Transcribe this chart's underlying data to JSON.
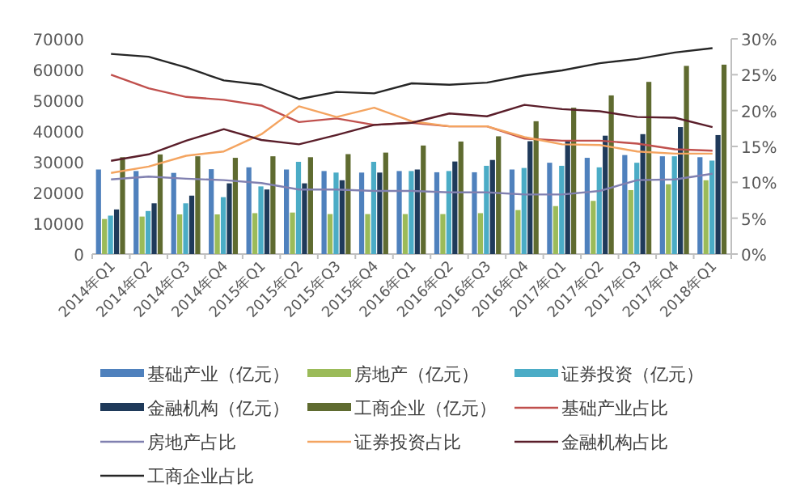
{
  "chart_data": {
    "type": "bar",
    "categories": [
      "2014年Q1",
      "2014年Q2",
      "2014年Q3",
      "2014年Q4",
      "2015年Q1",
      "2015年Q2",
      "2015年Q3",
      "2015年Q4",
      "2016年Q1",
      "2016年Q2",
      "2016年Q3",
      "2016年Q4",
      "2017年Q1",
      "2017年Q2",
      "2017年Q3",
      "2017年Q4",
      "2018年Q1"
    ],
    "series": [
      {
        "name": "基础产业（亿元）",
        "color": "#4f81bd",
        "values": [
          27500,
          27000,
          26400,
          27600,
          28200,
          27500,
          27000,
          26500,
          27000,
          26600,
          26600,
          27500,
          29700,
          31300,
          32200,
          31800,
          31500
        ]
      },
      {
        "name": "房地产（亿元）",
        "color": "#9bbb59",
        "values": [
          11400,
          12200,
          12900,
          12900,
          13300,
          13500,
          13000,
          13000,
          13000,
          13000,
          13300,
          14300,
          15600,
          17300,
          20800,
          22700,
          24000
        ]
      },
      {
        "name": "证券投资（亿元）",
        "color": "#4bacc6",
        "values": [
          12500,
          14000,
          16500,
          18500,
          22000,
          30000,
          26500,
          30000,
          27000,
          27000,
          28700,
          28000,
          28700,
          28200,
          29700,
          31800,
          30400
        ]
      },
      {
        "name": "金融机构（亿元）",
        "color": "#1f3a5a",
        "values": [
          14500,
          16500,
          19000,
          23000,
          21000,
          23000,
          24000,
          26500,
          27500,
          30100,
          30600,
          36700,
          36700,
          38500,
          39000,
          41300,
          38700
        ]
      },
      {
        "name": "工商企业（亿元）",
        "color": "#5f6b30",
        "values": [
          31500,
          32400,
          31800,
          31300,
          31800,
          31500,
          32500,
          33000,
          35300,
          36600,
          38300,
          43200,
          47600,
          51600,
          56000,
          61200,
          61600
        ]
      },
      {
        "name": "基础产业占比",
        "type": "line",
        "axis": "y2",
        "color": "#c0504d",
        "values": [
          25.0,
          23.1,
          21.9,
          21.5,
          20.7,
          18.4,
          18.9,
          18.0,
          18.3,
          17.8,
          17.8,
          16.1,
          15.8,
          15.8,
          15.4,
          14.6,
          14.4
        ]
      },
      {
        "name": "房地产占比",
        "type": "line",
        "axis": "y2",
        "color": "#8080b0",
        "values": [
          10.4,
          10.8,
          10.5,
          10.3,
          9.9,
          9.0,
          9.0,
          8.8,
          8.8,
          8.6,
          8.6,
          8.3,
          8.3,
          8.8,
          10.3,
          10.4,
          11.2
        ]
      },
      {
        "name": "证券投资占比",
        "type": "line",
        "axis": "y2",
        "color": "#f4a460",
        "values": [
          11.3,
          12.2,
          13.7,
          14.3,
          16.7,
          20.6,
          19.1,
          20.4,
          18.5,
          17.8,
          17.8,
          16.3,
          15.3,
          15.2,
          14.3,
          14.0,
          14.0
        ]
      },
      {
        "name": "金融机构占比",
        "type": "line",
        "axis": "y2",
        "color": "#5a1e2a",
        "values": [
          13.0,
          13.9,
          15.8,
          17.4,
          15.9,
          15.3,
          16.6,
          18.0,
          18.3,
          19.6,
          19.2,
          20.8,
          20.2,
          19.9,
          19.1,
          19.0,
          17.7
        ]
      },
      {
        "name": "工商企业占比",
        "type": "line",
        "axis": "y2",
        "color": "#262626",
        "values": [
          27.9,
          27.5,
          26.0,
          24.2,
          23.6,
          21.6,
          22.6,
          22.4,
          23.8,
          23.6,
          23.9,
          24.9,
          25.6,
          26.6,
          27.2,
          28.1,
          28.7
        ]
      }
    ],
    "ylim": [
      0,
      70000
    ],
    "yticks": [
      0,
      10000,
      20000,
      30000,
      40000,
      50000,
      60000,
      70000
    ],
    "y2lim": [
      0,
      30
    ],
    "y2ticks": [
      {
        "value": 0,
        "label": "0%"
      },
      {
        "value": 5,
        "label": "5%"
      },
      {
        "value": 10,
        "label": "10%"
      },
      {
        "value": 15,
        "label": "15%"
      },
      {
        "value": 20,
        "label": "20%"
      },
      {
        "value": 25,
        "label": "25%"
      },
      {
        "value": 30,
        "label": "30%"
      }
    ],
    "legend": "bottom"
  }
}
